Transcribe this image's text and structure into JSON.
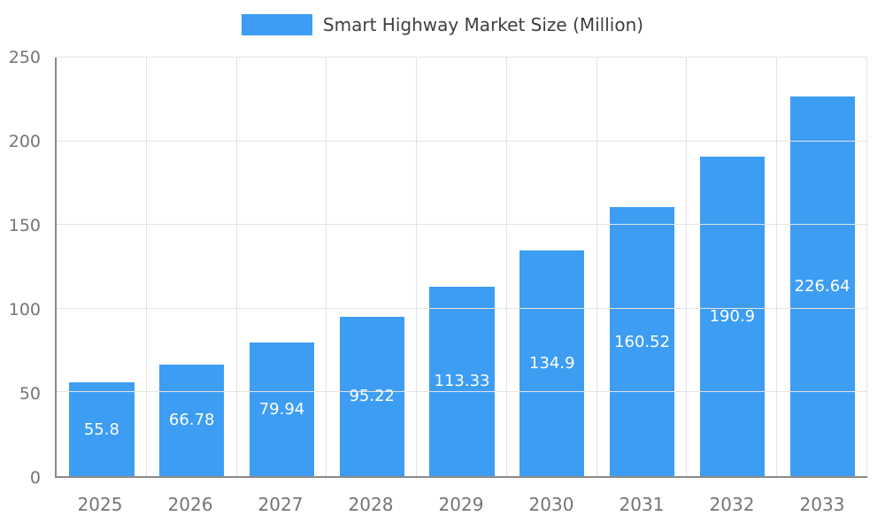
{
  "legend": {
    "label": "Smart Highway Market Size (Million)"
  },
  "chart_data": {
    "type": "bar",
    "title": "Smart Highway Market Size (Million)",
    "series_name": "Smart Highway Market Size (Million)",
    "categories": [
      "2025",
      "2026",
      "2027",
      "2028",
      "2029",
      "2030",
      "2031",
      "2032",
      "2033"
    ],
    "values": [
      55.8,
      66.78,
      79.94,
      95.22,
      113.33,
      134.9,
      160.52,
      190.9,
      226.64
    ],
    "xlabel": "",
    "ylabel": "",
    "ylim": [
      0,
      250
    ],
    "yticks": [
      0,
      50,
      100,
      150,
      200,
      250
    ],
    "grid": true,
    "legend_position": "top-center",
    "bar_color": "#3d9df3",
    "label_color": "#ffffff",
    "grid_color": "#e3e3e3",
    "axis_color": "#8a8a8a",
    "tick_color": "#757575",
    "title_color": "#3f3f3f"
  }
}
